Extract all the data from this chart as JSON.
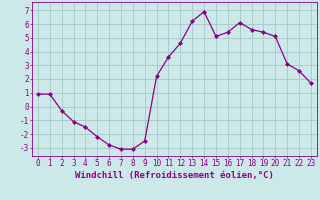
{
  "x": [
    0,
    1,
    2,
    3,
    4,
    5,
    6,
    7,
    8,
    9,
    10,
    11,
    12,
    13,
    14,
    15,
    16,
    17,
    18,
    19,
    20,
    21,
    22,
    23
  ],
  "y": [
    0.9,
    0.9,
    -0.3,
    -1.1,
    -1.5,
    -2.2,
    -2.8,
    -3.1,
    -3.1,
    -2.5,
    2.2,
    3.6,
    4.6,
    6.2,
    6.9,
    5.1,
    5.4,
    6.1,
    5.6,
    5.4,
    5.1,
    3.1,
    2.6,
    1.7
  ],
  "line_color": "#8B008B",
  "marker": "D",
  "marker_size": 2.0,
  "bg_color": "#cce8e8",
  "grid_color": "#aacccc",
  "xlabel": "Windchill (Refroidissement éolien,°C)",
  "yticks": [
    -3,
    -2,
    -1,
    0,
    1,
    2,
    3,
    4,
    5,
    6,
    7
  ],
  "xticks": [
    0,
    1,
    2,
    3,
    4,
    5,
    6,
    7,
    8,
    9,
    10,
    11,
    12,
    13,
    14,
    15,
    16,
    17,
    18,
    19,
    20,
    21,
    22,
    23
  ],
  "ylim": [
    -3.6,
    7.6
  ],
  "xlim": [
    -0.5,
    23.5
  ],
  "label_fontsize": 6.5,
  "tick_fontsize": 5.5
}
